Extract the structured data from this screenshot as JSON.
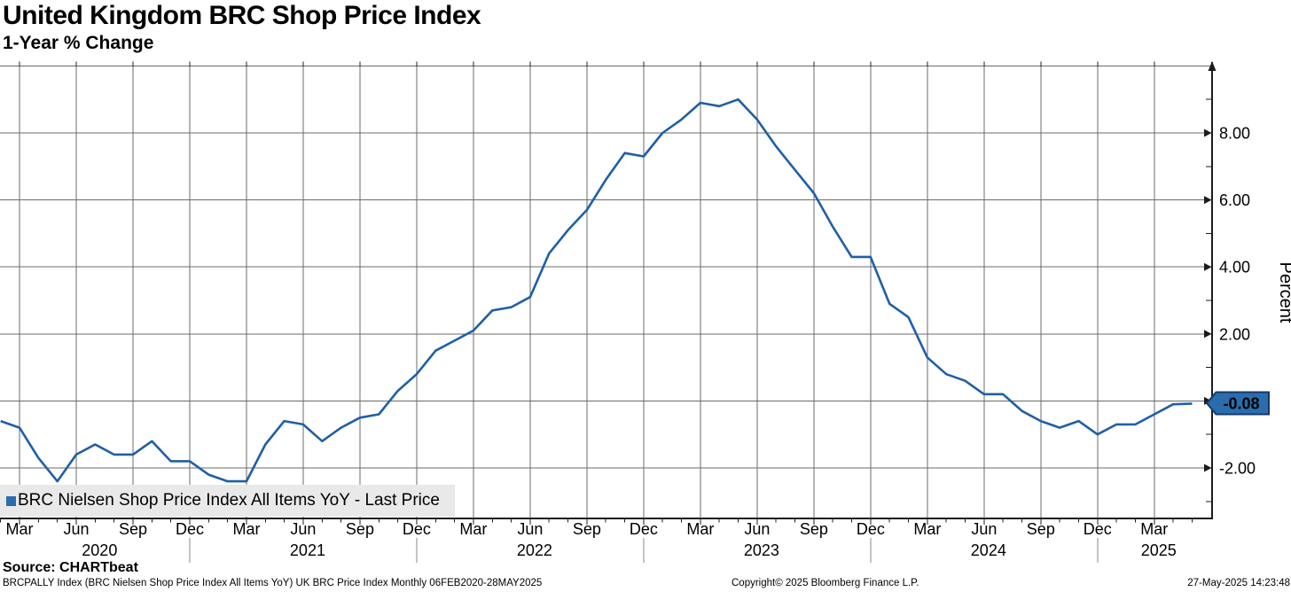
{
  "title": "United Kingdom BRC Shop Price Index",
  "subtitle": "1-Year % Change",
  "legend": {
    "label": "BRC Nielsen Shop Price Index All Items YoY - Last Price",
    "swatch_color": "#2b6cad",
    "background": "#e9e9e9"
  },
  "y_axis": {
    "title": "Percent",
    "labeled_ticks": [
      {
        "value": 8,
        "label": "8.00"
      },
      {
        "value": 6,
        "label": "6.00"
      },
      {
        "value": 4,
        "label": "4.00"
      },
      {
        "value": 2,
        "label": "2.00"
      },
      {
        "value": -2,
        "label": "-2.00"
      }
    ],
    "minor_ticks": [
      9,
      7,
      5,
      3,
      1,
      -1,
      -3
    ],
    "gridline_values": [
      10,
      8,
      6,
      4,
      2,
      0,
      -2
    ],
    "arrow_values": [
      8,
      6,
      4,
      2,
      0,
      -2
    ]
  },
  "last_price": {
    "value": -0.08,
    "label": "-0.08",
    "badge_fill": "#2b6cad",
    "badge_border": "#163a66",
    "text_color": "#ffffff"
  },
  "x_axis": {
    "quarter_ticks": [
      {
        "label": "Mar",
        "m": 0
      },
      {
        "label": "Jun",
        "m": 3
      },
      {
        "label": "Sep",
        "m": 6
      },
      {
        "label": "Dec",
        "m": 9
      },
      {
        "label": "Mar",
        "m": 12
      },
      {
        "label": "Jun",
        "m": 15
      },
      {
        "label": "Sep",
        "m": 18
      },
      {
        "label": "Dec",
        "m": 21
      },
      {
        "label": "Mar",
        "m": 24
      },
      {
        "label": "Jun",
        "m": 27
      },
      {
        "label": "Sep",
        "m": 30
      },
      {
        "label": "Dec",
        "m": 33
      },
      {
        "label": "Mar",
        "m": 36
      },
      {
        "label": "Jun",
        "m": 39
      },
      {
        "label": "Sep",
        "m": 42
      },
      {
        "label": "Dec",
        "m": 45
      },
      {
        "label": "Mar",
        "m": 48
      },
      {
        "label": "Jun",
        "m": 51
      },
      {
        "label": "Sep",
        "m": 54
      },
      {
        "label": "Dec",
        "m": 57
      },
      {
        "label": "Mar",
        "m": 60
      }
    ],
    "year_labels": [
      {
        "label": "2020",
        "m": 4
      },
      {
        "label": "2021",
        "m": 15
      },
      {
        "label": "2022",
        "m": 27
      },
      {
        "label": "2023",
        "m": 39
      },
      {
        "label": "2024",
        "m": 51
      },
      {
        "label": "2025",
        "m": 60
      }
    ],
    "year_separator_months": [
      9,
      21,
      33,
      45,
      57
    ]
  },
  "footer": {
    "source": "Source: CHARTbeat",
    "meta_left": "BRCPALLY Index (BRC Nielsen Shop Price Index All Items YoY) UK BRC Price Index  Monthly 06FEB2020-28MAY2025",
    "copyright": "Copyright© 2025 Bloomberg Finance L.P.",
    "timestamp": "27-May-2025 14:23:48"
  },
  "colors": {
    "line": "#1f5fa6",
    "grid": "#6b6b6b",
    "axis": "#1c1c1c",
    "separator": "#888888",
    "text": "#000000"
  },
  "chart_data": {
    "type": "line",
    "title": "United Kingdom BRC Shop Price Index",
    "subtitle": "1-Year % Change",
    "xlabel": "",
    "ylabel": "Percent",
    "ylim": [
      -3.5,
      10
    ],
    "grid": "on",
    "legend_position": "bottom-left",
    "last_price": -0.08,
    "series": [
      {
        "name": "BRC Nielsen Shop Price Index All Items YoY - Last Price",
        "start_month": "2020-02",
        "end_month": "2025-05",
        "categories": [
          "Feb 2020",
          "Mar 2020",
          "Apr 2020",
          "May 2020",
          "Jun 2020",
          "Jul 2020",
          "Aug 2020",
          "Sep 2020",
          "Oct 2020",
          "Nov 2020",
          "Dec 2020",
          "Jan 2021",
          "Feb 2021",
          "Mar 2021",
          "Apr 2021",
          "May 2021",
          "Jun 2021",
          "Jul 2021",
          "Aug 2021",
          "Sep 2021",
          "Oct 2021",
          "Nov 2021",
          "Dec 2021",
          "Jan 2022",
          "Feb 2022",
          "Mar 2022",
          "Apr 2022",
          "May 2022",
          "Jun 2022",
          "Jul 2022",
          "Aug 2022",
          "Sep 2022",
          "Oct 2022",
          "Nov 2022",
          "Dec 2022",
          "Jan 2023",
          "Feb 2023",
          "Mar 2023",
          "Apr 2023",
          "May 2023",
          "Jun 2023",
          "Jul 2023",
          "Aug 2023",
          "Sep 2023",
          "Oct 2023",
          "Nov 2023",
          "Dec 2023",
          "Jan 2024",
          "Feb 2024",
          "Mar 2024",
          "Apr 2024",
          "May 2024",
          "Jun 2024",
          "Jul 2024",
          "Aug 2024",
          "Sep 2024",
          "Oct 2024",
          "Nov 2024",
          "Dec 2024",
          "Jan 2025",
          "Feb 2025",
          "Mar 2025",
          "Apr 2025",
          "May 2025"
        ],
        "values": [
          -0.6,
          -0.8,
          -1.7,
          -2.4,
          -1.6,
          -1.3,
          -1.6,
          -1.6,
          -1.2,
          -1.8,
          -1.8,
          -2.2,
          -2.4,
          -2.4,
          -1.3,
          -0.6,
          -0.7,
          -1.2,
          -0.8,
          -0.5,
          -0.4,
          0.3,
          0.8,
          1.5,
          1.8,
          2.1,
          2.7,
          2.8,
          3.1,
          4.4,
          5.1,
          5.7,
          6.6,
          7.4,
          7.3,
          8.0,
          8.4,
          8.9,
          8.8,
          9.0,
          8.4,
          7.6,
          6.9,
          6.2,
          5.2,
          4.3,
          4.3,
          2.9,
          2.5,
          1.3,
          0.8,
          0.6,
          0.2,
          0.2,
          -0.3,
          -0.6,
          -0.8,
          -0.6,
          -1.0,
          -0.7,
          -0.7,
          -0.4,
          -0.1,
          -0.08
        ]
      }
    ]
  }
}
